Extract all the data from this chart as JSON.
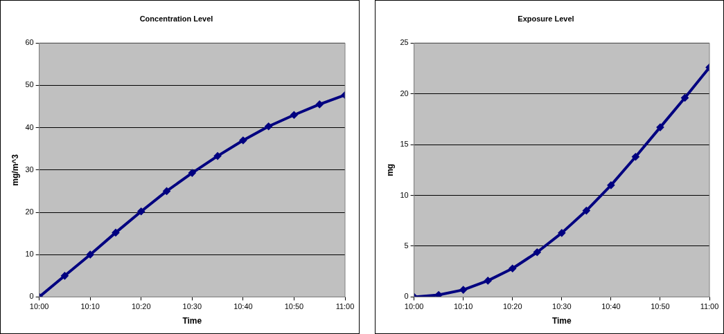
{
  "chart_data": [
    {
      "type": "line",
      "title": "Concentration Level",
      "xlabel": "Time",
      "ylabel": "mg/m^3",
      "x": [
        10,
        10.0833,
        10.1667,
        10.25,
        10.3333,
        10.4167,
        10.5,
        10.5833,
        10.6667,
        10.75,
        10.8333,
        10.9167,
        11
      ],
      "series": [
        {
          "color": "#000080",
          "values": [
            0,
            5,
            10,
            15.2,
            20.2,
            25,
            29.3,
            33.3,
            37,
            40.3,
            43,
            45.5,
            47.7
          ]
        }
      ],
      "xlim": [
        10,
        11
      ],
      "xticks": [
        {
          "value": 10,
          "label": "10:00"
        },
        {
          "value": 10.1667,
          "label": "10:10"
        },
        {
          "value": 10.3333,
          "label": "10:20"
        },
        {
          "value": 10.5,
          "label": "10:30"
        },
        {
          "value": 10.6667,
          "label": "10:40"
        },
        {
          "value": 10.8333,
          "label": "10:50"
        },
        {
          "value": 11,
          "label": "11:00"
        }
      ],
      "ylim": [
        0,
        60
      ],
      "yticks": [
        0,
        10,
        20,
        30,
        40,
        50,
        60
      ],
      "grid": "y",
      "legend": false,
      "marker": "diamond",
      "line_style": "solid"
    },
    {
      "type": "line",
      "title": "Exposure Level",
      "xlabel": "Time",
      "ylabel": "mg",
      "x": [
        10,
        10.0833,
        10.1667,
        10.25,
        10.3333,
        10.4167,
        10.5,
        10.5833,
        10.6667,
        10.75,
        10.8333,
        10.9167,
        11
      ],
      "series": [
        {
          "color": "#000080",
          "values": [
            0,
            0.2,
            0.7,
            1.6,
            2.8,
            4.4,
            6.3,
            8.5,
            11,
            13.8,
            16.7,
            19.6,
            22.6
          ]
        }
      ],
      "xlim": [
        10,
        11
      ],
      "xticks": [
        {
          "value": 10,
          "label": "10:00"
        },
        {
          "value": 10.1667,
          "label": "10:10"
        },
        {
          "value": 10.3333,
          "label": "10:20"
        },
        {
          "value": 10.5,
          "label": "10:30"
        },
        {
          "value": 10.6667,
          "label": "10:40"
        },
        {
          "value": 10.8333,
          "label": "10:50"
        },
        {
          "value": 11,
          "label": "11:00"
        }
      ],
      "ylim": [
        0,
        25
      ],
      "yticks": [
        0,
        5,
        10,
        15,
        20,
        25
      ],
      "grid": "y",
      "legend": false,
      "marker": "diamond",
      "line_style": "solid"
    }
  ]
}
